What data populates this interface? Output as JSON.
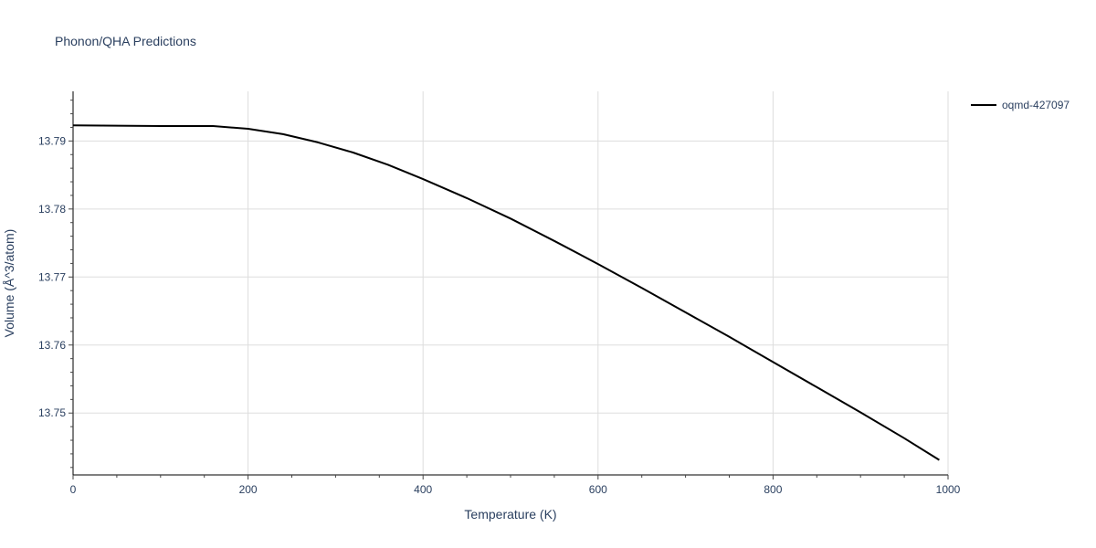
{
  "chart_data": {
    "type": "line",
    "title": "Phonon/QHA Predictions",
    "xlabel": "Temperature (K)",
    "ylabel": "Volume (Å^3/atom)",
    "xlim": [
      0,
      1000
    ],
    "ylim": [
      13.7409,
      13.7973
    ],
    "x_ticks": [
      0,
      200,
      400,
      600,
      800,
      1000
    ],
    "x_tick_labels": [
      "0",
      "200",
      "400",
      "600",
      "800",
      "1000"
    ],
    "y_ticks": [
      13.75,
      13.76,
      13.77,
      13.78,
      13.79
    ],
    "y_tick_labels": [
      "13.75",
      "13.76",
      "13.77",
      "13.78",
      "13.79"
    ],
    "grid": true,
    "legend_position": "top-right",
    "series": [
      {
        "name": "oqmd-427097",
        "color": "#000000",
        "x": [
          0,
          100,
          160,
          200,
          240,
          280,
          320,
          360,
          400,
          450,
          500,
          550,
          600,
          650,
          700,
          750,
          800,
          850,
          900,
          950,
          990
        ],
        "y": [
          13.7923,
          13.7922,
          13.7922,
          13.7918,
          13.791,
          13.7898,
          13.7883,
          13.7865,
          13.7844,
          13.7816,
          13.7786,
          13.7753,
          13.7719,
          13.7684,
          13.7648,
          13.7612,
          13.7575,
          13.7538,
          13.7501,
          13.7463,
          13.7431
        ]
      }
    ]
  }
}
